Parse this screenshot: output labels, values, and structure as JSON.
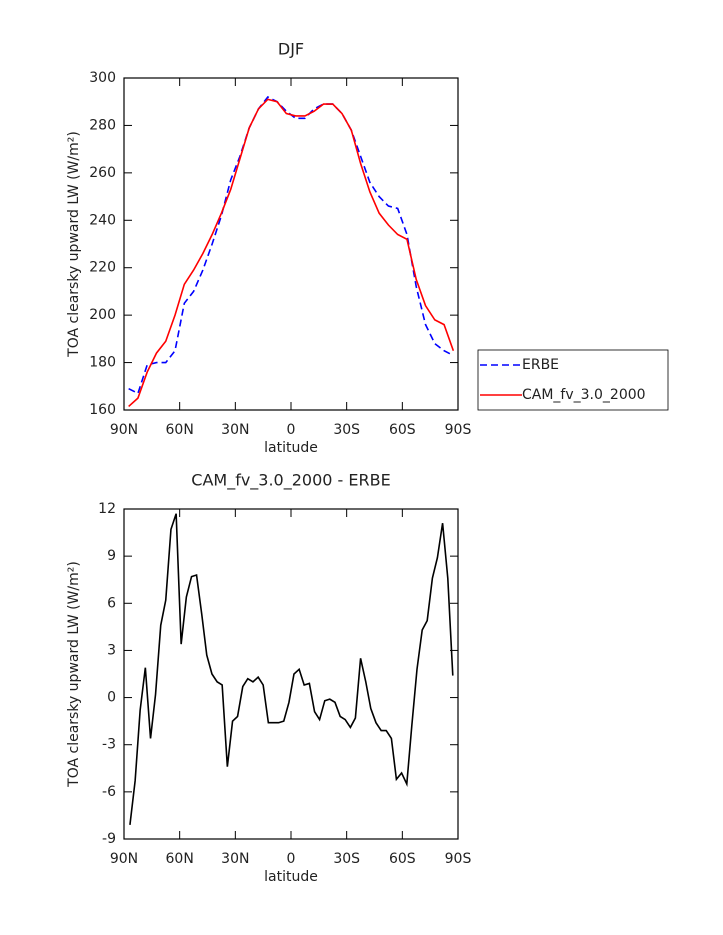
{
  "chart_data": [
    {
      "type": "line",
      "title": "DJF",
      "xlabel": "latitude",
      "ylabel": "TOA clearsky upward LW (W/m²)",
      "x": [
        87.5,
        82.5,
        77.5,
        72.5,
        67.5,
        62.5,
        57.5,
        52.5,
        47.5,
        42.5,
        37.5,
        32.5,
        27.5,
        22.5,
        17.5,
        12.5,
        7.5,
        2.5,
        -2.5,
        -7.5,
        -12.5,
        -17.5,
        -22.5,
        -27.5,
        -32.5,
        -37.5,
        -42.5,
        -47.5,
        -52.5,
        -57.5,
        -62.5,
        -67.5,
        -72.5,
        -77.5,
        -82.5,
        -87.5
      ],
      "series": [
        {
          "name": "ERBE",
          "color": "#0000ff",
          "dashed": true,
          "values": [
            169,
            167,
            179,
            180,
            180,
            185,
            205,
            210,
            219,
            230,
            242,
            257,
            267,
            279,
            287,
            292,
            290,
            286,
            283,
            283,
            287,
            289,
            289,
            285,
            278,
            267,
            256,
            250,
            246,
            245,
            234,
            212,
            196,
            188,
            185,
            183
          ]
        },
        {
          "name": "CAM_fv_3.0_2000",
          "color": "#ff0000",
          "dashed": false,
          "values": [
            161.5,
            165,
            176,
            184,
            189,
            200,
            213,
            219,
            226,
            234,
            243,
            253,
            266,
            279,
            287,
            291,
            290,
            285,
            284,
            284,
            286,
            289,
            289,
            285,
            278,
            264,
            252,
            243,
            238,
            234,
            232,
            215,
            204,
            198,
            196,
            185
          ]
        }
      ],
      "xlim": [
        90,
        -90
      ],
      "xticks": [
        {
          "value": 90,
          "label": "90N"
        },
        {
          "value": 60,
          "label": "60N"
        },
        {
          "value": 30,
          "label": "30N"
        },
        0,
        {
          "value": -30,
          "label": "30S"
        },
        {
          "value": -60,
          "label": "60S"
        },
        {
          "value": -90,
          "label": "90S"
        }
      ],
      "ylim": [
        160,
        300
      ],
      "yticks": [
        160,
        180,
        200,
        220,
        240,
        260,
        280,
        300
      ],
      "legend": "right"
    },
    {
      "type": "line",
      "title": "CAM_fv_3.0_2000 - ERBE",
      "xlabel": "latitude",
      "ylabel": "TOA clearsky upward LW (W/m²)",
      "x": [
        86.8,
        84.0,
        81.3,
        78.5,
        75.7,
        73.0,
        70.2,
        67.5,
        64.7,
        61.9,
        59.2,
        56.4,
        53.6,
        50.9,
        48.1,
        45.4,
        42.6,
        39.8,
        37.1,
        34.3,
        31.5,
        28.8,
        26.0,
        23.3,
        20.5,
        17.7,
        15.0,
        12.2,
        9.4,
        6.7,
        3.9,
        1.1,
        -1.6,
        -4.4,
        -7.1,
        -9.9,
        -12.7,
        -15.4,
        -18.2,
        -20.9,
        -23.7,
        -26.5,
        -29.2,
        -32.0,
        -34.7,
        -37.5,
        -40.3,
        -43.0,
        -45.8,
        -48.6,
        -51.3,
        -54.1,
        -56.8,
        -59.6,
        -62.4,
        -65.1,
        -67.9,
        -70.7,
        -73.4,
        -76.2,
        -78.9,
        -81.7,
        -84.5,
        -87.2
      ],
      "values": [
        -8.1,
        -5.3,
        -0.8,
        1.9,
        -2.6,
        0.2,
        4.6,
        6.2,
        10.7,
        11.7,
        3.4,
        6.4,
        7.7,
        7.8,
        5.3,
        2.7,
        1.5,
        1.0,
        0.8,
        -4.4,
        -1.5,
        -1.2,
        0.7,
        1.2,
        1.0,
        1.3,
        0.8,
        -1.6,
        -1.6,
        -1.6,
        -1.5,
        -0.3,
        1.5,
        1.8,
        0.8,
        0.9,
        -0.9,
        -1.4,
        -0.2,
        -0.1,
        -0.3,
        -1.2,
        -1.4,
        -1.9,
        -1.3,
        2.5,
        1.0,
        -0.7,
        -1.6,
        -2.1,
        -2.1,
        -2.6,
        -5.2,
        -4.8,
        -5.5,
        -1.8,
        1.8,
        4.3,
        4.9,
        7.6,
        8.9,
        11.1,
        7.6,
        1.4
      ],
      "color": "#000000",
      "xlim": [
        90,
        -90
      ],
      "xticks": [
        {
          "value": 90,
          "label": "90N"
        },
        {
          "value": 60,
          "label": "60N"
        },
        {
          "value": 30,
          "label": "30N"
        },
        0,
        {
          "value": -30,
          "label": "30S"
        },
        {
          "value": -60,
          "label": "60S"
        },
        {
          "value": -90,
          "label": "90S"
        }
      ],
      "ylim": [
        -9,
        12
      ],
      "yticks": [
        -9,
        -6,
        -3,
        0,
        3,
        6,
        9,
        12
      ]
    }
  ]
}
